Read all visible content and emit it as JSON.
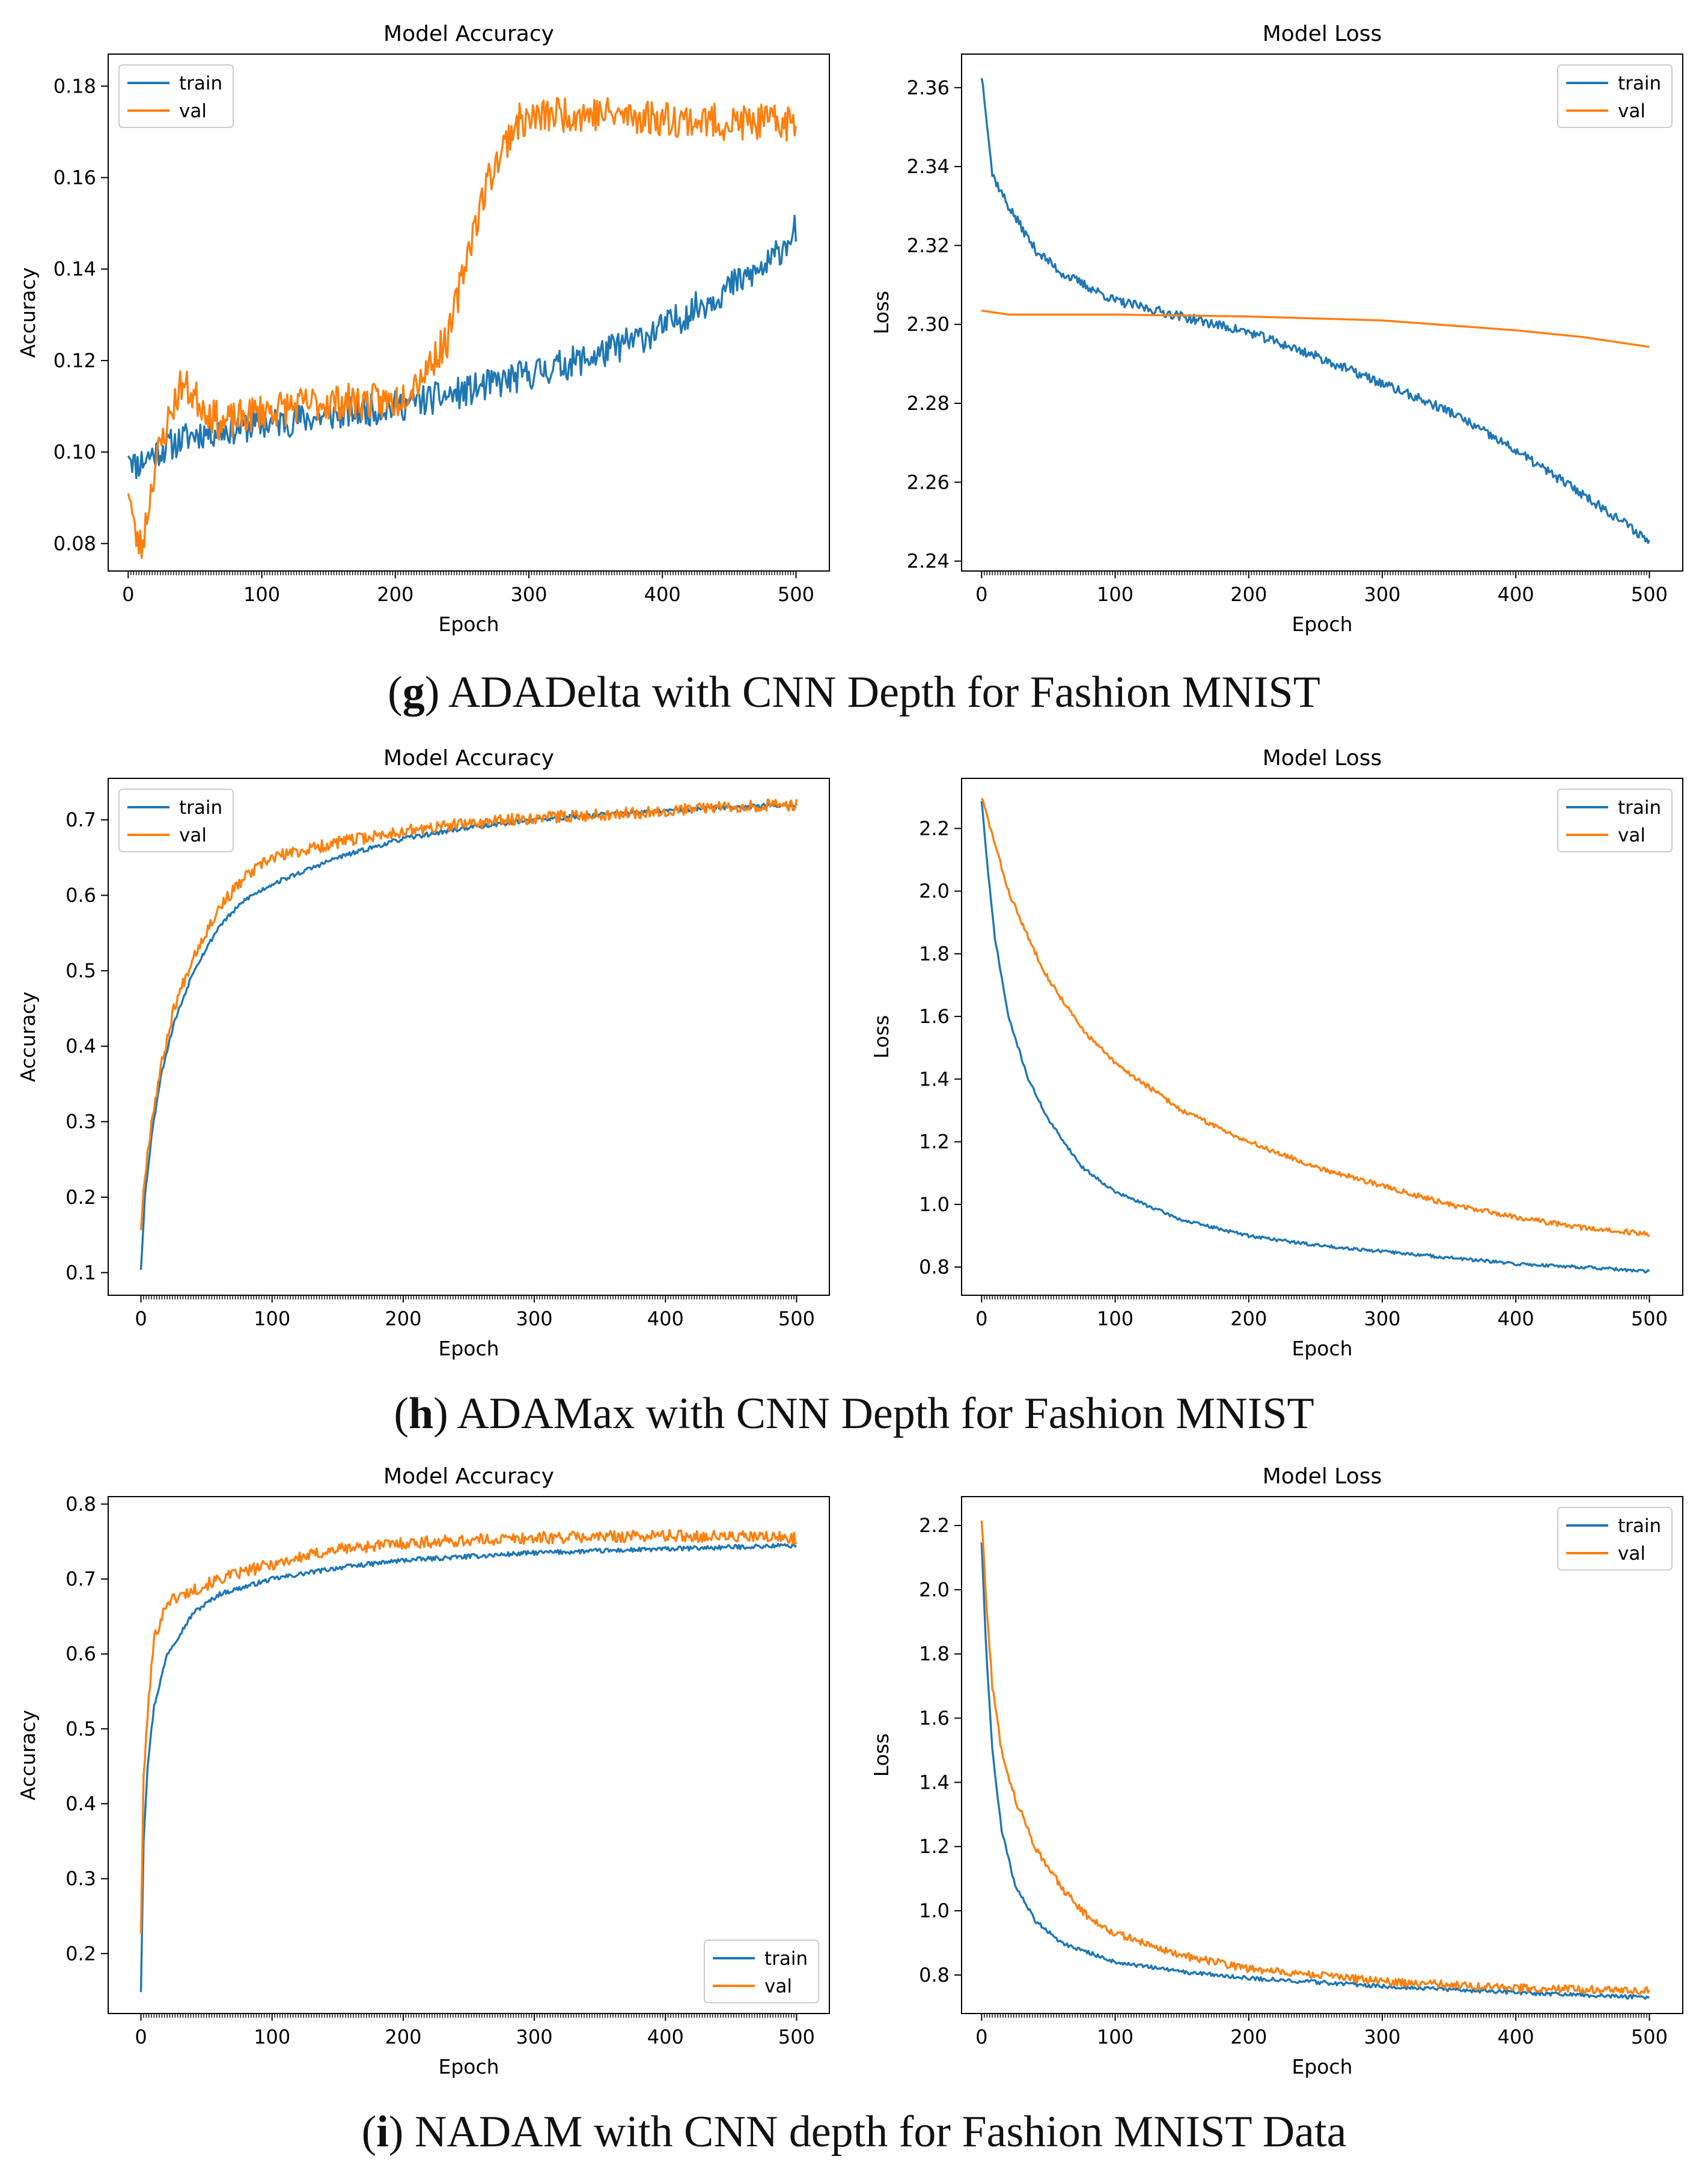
{
  "colors": {
    "train": "#1f77b4",
    "val": "#ff7f0e",
    "axis": "#000000"
  },
  "captions": [
    {
      "letter": "g",
      "text": "ADADelta with CNN Depth for Fashion MNIST"
    },
    {
      "letter": "h",
      "text": "ADAMax with CNN Depth for Fashion MNIST"
    },
    {
      "letter": "i",
      "text": "NADAM with CNN depth for Fashion MNIST Data"
    }
  ],
  "chart_data": [
    {
      "id": "g-acc",
      "type": "line",
      "title": "Model Accuracy",
      "xlabel": "Epoch",
      "ylabel": "Accuracy",
      "legend": "upper-left",
      "xlim": [
        -15,
        525
      ],
      "ylim": [
        0.074,
        0.187
      ],
      "xticks": [
        0,
        100,
        200,
        300,
        400,
        500
      ],
      "yticks": [
        0.08,
        0.1,
        0.12,
        0.14,
        0.16,
        0.18
      ],
      "ytick_labels": [
        "0.08",
        "0.10",
        "0.12",
        "0.14",
        "0.16",
        "0.18"
      ],
      "series": [
        {
          "name": "train",
          "noise": 0.0035,
          "seed": 11,
          "points": [
            [
              0,
              0.101
            ],
            [
              5,
              0.097
            ],
            [
              20,
              0.1
            ],
            [
              50,
              0.104
            ],
            [
              100,
              0.106
            ],
            [
              150,
              0.108
            ],
            [
              200,
              0.11
            ],
            [
              250,
              0.113
            ],
            [
              300,
              0.117
            ],
            [
              350,
              0.121
            ],
            [
              400,
              0.127
            ],
            [
              450,
              0.136
            ],
            [
              480,
              0.141
            ],
            [
              500,
              0.149
            ]
          ]
        },
        {
          "name": "val",
          "noise": 0.004,
          "seed": 23,
          "points": [
            [
              0,
              0.093
            ],
            [
              5,
              0.082
            ],
            [
              10,
              0.079
            ],
            [
              20,
              0.097
            ],
            [
              30,
              0.107
            ],
            [
              40,
              0.115
            ],
            [
              50,
              0.112
            ],
            [
              70,
              0.106
            ],
            [
              100,
              0.109
            ],
            [
              150,
              0.111
            ],
            [
              200,
              0.111
            ],
            [
              220,
              0.117
            ],
            [
              240,
              0.125
            ],
            [
              255,
              0.145
            ],
            [
              270,
              0.16
            ],
            [
              290,
              0.172
            ],
            [
              320,
              0.174
            ],
            [
              350,
              0.174
            ],
            [
              400,
              0.173
            ],
            [
              450,
              0.172
            ],
            [
              500,
              0.172
            ]
          ]
        }
      ]
    },
    {
      "id": "g-loss",
      "type": "line",
      "title": "Model Loss",
      "xlabel": "Epoch",
      "ylabel": "Loss",
      "legend": "upper-right",
      "xlim": [
        -15,
        525
      ],
      "ylim": [
        2.2375,
        2.3685
      ],
      "xticks": [
        0,
        100,
        200,
        300,
        400,
        500
      ],
      "yticks": [
        2.24,
        2.26,
        2.28,
        2.3,
        2.32,
        2.34,
        2.36
      ],
      "ytick_labels": [
        "2.24",
        "2.26",
        "2.28",
        "2.30",
        "2.32",
        "2.34",
        "2.36"
      ],
      "series": [
        {
          "name": "train",
          "noise": 0.0012,
          "seed": 37,
          "points": [
            [
              0,
              2.363
            ],
            [
              3,
              2.355
            ],
            [
              8,
              2.338
            ],
            [
              20,
              2.33
            ],
            [
              40,
              2.319
            ],
            [
              60,
              2.313
            ],
            [
              100,
              2.306
            ],
            [
              150,
              2.302
            ],
            [
              200,
              2.298
            ],
            [
              250,
              2.292
            ],
            [
              300,
              2.285
            ],
            [
              350,
              2.278
            ],
            [
              400,
              2.268
            ],
            [
              450,
              2.257
            ],
            [
              480,
              2.25
            ],
            [
              500,
              2.245
            ]
          ]
        },
        {
          "name": "val",
          "noise": 0.0,
          "seed": 41,
          "points": [
            [
              0,
              2.3035
            ],
            [
              20,
              2.3025
            ],
            [
              100,
              2.3025
            ],
            [
              200,
              2.302
            ],
            [
              300,
              2.301
            ],
            [
              400,
              2.2985
            ],
            [
              450,
              2.2968
            ],
            [
              500,
              2.2943
            ]
          ]
        }
      ]
    },
    {
      "id": "h-acc",
      "type": "line",
      "title": "Model Accuracy",
      "xlabel": "Epoch",
      "ylabel": "Accuracy",
      "legend": "upper-left",
      "xlim": [
        -25,
        525
      ],
      "ylim": [
        0.07,
        0.755
      ],
      "xticks": [
        0,
        100,
        200,
        300,
        400,
        500
      ],
      "yticks": [
        0.1,
        0.2,
        0.3,
        0.4,
        0.5,
        0.6,
        0.7
      ],
      "ytick_labels": [
        "0.1",
        "0.2",
        "0.3",
        "0.4",
        "0.5",
        "0.6",
        "0.7"
      ],
      "series": [
        {
          "name": "train",
          "noise": 0.003,
          "seed": 53,
          "points": [
            [
              0,
              0.105
            ],
            [
              3,
              0.2
            ],
            [
              8,
              0.28
            ],
            [
              15,
              0.36
            ],
            [
              25,
              0.43
            ],
            [
              40,
              0.5
            ],
            [
              60,
              0.56
            ],
            [
              80,
              0.595
            ],
            [
              100,
              0.615
            ],
            [
              150,
              0.65
            ],
            [
              200,
              0.675
            ],
            [
              250,
              0.69
            ],
            [
              300,
              0.7
            ],
            [
              350,
              0.707
            ],
            [
              400,
              0.712
            ],
            [
              450,
              0.717
            ],
            [
              500,
              0.72
            ]
          ]
        },
        {
          "name": "val",
          "noise": 0.008,
          "seed": 67,
          "points": [
            [
              0,
              0.16
            ],
            [
              3,
              0.23
            ],
            [
              8,
              0.3
            ],
            [
              15,
              0.37
            ],
            [
              25,
              0.45
            ],
            [
              40,
              0.52
            ],
            [
              60,
              0.585
            ],
            [
              80,
              0.625
            ],
            [
              100,
              0.65
            ],
            [
              150,
              0.67
            ],
            [
              200,
              0.685
            ],
            [
              250,
              0.695
            ],
            [
              300,
              0.703
            ],
            [
              350,
              0.707
            ],
            [
              400,
              0.712
            ],
            [
              450,
              0.718
            ],
            [
              500,
              0.72
            ]
          ]
        }
      ]
    },
    {
      "id": "h-loss",
      "type": "line",
      "title": "Model Loss",
      "xlabel": "Epoch",
      "ylabel": "Loss",
      "legend": "upper-right",
      "xlim": [
        -15,
        525
      ],
      "ylim": [
        0.71,
        2.36
      ],
      "xticks": [
        0,
        100,
        200,
        300,
        400,
        500
      ],
      "yticks": [
        0.8,
        1.0,
        1.2,
        1.4,
        1.6,
        1.8,
        2.0,
        2.2
      ],
      "ytick_labels": [
        "0.8",
        "1.0",
        "1.2",
        "1.4",
        "1.6",
        "1.8",
        "2.0",
        "2.2"
      ],
      "series": [
        {
          "name": "train",
          "noise": 0.005,
          "seed": 71,
          "points": [
            [
              0,
              2.29
            ],
            [
              5,
              2.05
            ],
            [
              10,
              1.85
            ],
            [
              20,
              1.6
            ],
            [
              35,
              1.4
            ],
            [
              50,
              1.27
            ],
            [
              75,
              1.12
            ],
            [
              100,
              1.04
            ],
            [
              150,
              0.95
            ],
            [
              200,
              0.9
            ],
            [
              250,
              0.87
            ],
            [
              300,
              0.85
            ],
            [
              350,
              0.83
            ],
            [
              400,
              0.81
            ],
            [
              450,
              0.8
            ],
            [
              500,
              0.785
            ]
          ]
        },
        {
          "name": "val",
          "noise": 0.008,
          "seed": 83,
          "points": [
            [
              0,
              2.3
            ],
            [
              10,
              2.15
            ],
            [
              20,
              2.0
            ],
            [
              35,
              1.85
            ],
            [
              50,
              1.72
            ],
            [
              75,
              1.56
            ],
            [
              100,
              1.45
            ],
            [
              150,
              1.3
            ],
            [
              200,
              1.2
            ],
            [
              250,
              1.12
            ],
            [
              300,
              1.06
            ],
            [
              350,
              1.0
            ],
            [
              400,
              0.96
            ],
            [
              450,
              0.925
            ],
            [
              500,
              0.905
            ]
          ]
        }
      ]
    },
    {
      "id": "i-acc",
      "type": "line",
      "title": "Model Accuracy",
      "xlabel": "Epoch",
      "ylabel": "Accuracy",
      "legend": "lower-right",
      "xlim": [
        -25,
        525
      ],
      "ylim": [
        0.12,
        0.81
      ],
      "xticks": [
        0,
        100,
        200,
        300,
        400,
        500
      ],
      "yticks": [
        0.2,
        0.3,
        0.4,
        0.5,
        0.6,
        0.7,
        0.8
      ],
      "ytick_labels": [
        "0.2",
        "0.3",
        "0.4",
        "0.5",
        "0.6",
        "0.7",
        "0.8"
      ],
      "series": [
        {
          "name": "train",
          "noise": 0.003,
          "seed": 97,
          "points": [
            [
              0,
              0.15
            ],
            [
              2,
              0.35
            ],
            [
              5,
              0.45
            ],
            [
              10,
              0.53
            ],
            [
              20,
              0.6
            ],
            [
              40,
              0.655
            ],
            [
              60,
              0.68
            ],
            [
              100,
              0.7
            ],
            [
              150,
              0.715
            ],
            [
              200,
              0.725
            ],
            [
              300,
              0.735
            ],
            [
              400,
              0.74
            ],
            [
              500,
              0.745
            ]
          ]
        },
        {
          "name": "val",
          "noise": 0.008,
          "seed": 101,
          "points": [
            [
              0,
              0.23
            ],
            [
              2,
              0.43
            ],
            [
              5,
              0.52
            ],
            [
              10,
              0.62
            ],
            [
              20,
              0.67
            ],
            [
              40,
              0.685
            ],
            [
              60,
              0.7
            ],
            [
              100,
              0.72
            ],
            [
              150,
              0.74
            ],
            [
              200,
              0.748
            ],
            [
              300,
              0.755
            ],
            [
              400,
              0.758
            ],
            [
              500,
              0.755
            ]
          ]
        }
      ]
    },
    {
      "id": "i-loss",
      "type": "line",
      "title": "Model Loss",
      "xlabel": "Epoch",
      "ylabel": "Loss",
      "legend": "upper-right",
      "xlim": [
        -15,
        525
      ],
      "ylim": [
        0.68,
        2.29
      ],
      "xticks": [
        0,
        100,
        200,
        300,
        400,
        500
      ],
      "yticks": [
        0.8,
        1.0,
        1.2,
        1.4,
        1.6,
        1.8,
        2.0,
        2.2
      ],
      "ytick_labels": [
        "0.8",
        "1.0",
        "1.2",
        "1.4",
        "1.6",
        "1.8",
        "2.0",
        "2.2"
      ],
      "series": [
        {
          "name": "train",
          "noise": 0.006,
          "seed": 109,
          "points": [
            [
              0,
              2.15
            ],
            [
              3,
              1.85
            ],
            [
              8,
              1.5
            ],
            [
              15,
              1.25
            ],
            [
              25,
              1.08
            ],
            [
              40,
              0.97
            ],
            [
              60,
              0.9
            ],
            [
              100,
              0.84
            ],
            [
              150,
              0.81
            ],
            [
              200,
              0.79
            ],
            [
              300,
              0.765
            ],
            [
              400,
              0.745
            ],
            [
              500,
              0.73
            ]
          ]
        },
        {
          "name": "val",
          "noise": 0.012,
          "seed": 127,
          "points": [
            [
              0,
              2.22
            ],
            [
              3,
              2.0
            ],
            [
              8,
              1.7
            ],
            [
              15,
              1.5
            ],
            [
              25,
              1.35
            ],
            [
              40,
              1.2
            ],
            [
              60,
              1.07
            ],
            [
              80,
              0.98
            ],
            [
              100,
              0.93
            ],
            [
              150,
              0.86
            ],
            [
              200,
              0.82
            ],
            [
              300,
              0.78
            ],
            [
              400,
              0.76
            ],
            [
              500,
              0.75
            ]
          ]
        }
      ]
    }
  ]
}
